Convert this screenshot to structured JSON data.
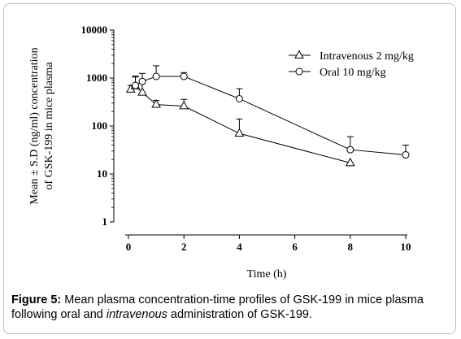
{
  "chart_data": {
    "type": "line",
    "xlabel": "Time (h)",
    "ylabel_line1": "Mean ± S.D (ng/ml) concentration",
    "ylabel_line2": "of GSK-199 in mice plasma",
    "y_scale": "log",
    "xlim": [
      0,
      10
    ],
    "ylim": [
      1,
      10000
    ],
    "x_ticks": [
      "0",
      "2",
      "4",
      "6",
      "8",
      "10"
    ],
    "y_ticks": [
      "1",
      "10",
      "100",
      "1000",
      "10000"
    ],
    "legend_position": "top-right",
    "series": [
      {
        "name": "Intravenous 2 mg/kg",
        "marker": "triangle",
        "x": [
          0.083,
          0.25,
          0.5,
          1,
          2,
          4,
          8
        ],
        "y": [
          580,
          680,
          500,
          280,
          260,
          70,
          17
        ],
        "error_upper": [
          700,
          1050,
          820,
          340,
          360,
          140,
          17
        ]
      },
      {
        "name": "Oral 10 mg/kg",
        "marker": "circle",
        "x": [
          0.25,
          0.5,
          1,
          2,
          4,
          8,
          10
        ],
        "y": [
          700,
          850,
          1080,
          1080,
          370,
          32,
          25
        ],
        "error_upper": [
          1100,
          1250,
          1800,
          1300,
          600,
          60,
          40
        ]
      }
    ]
  },
  "caption": {
    "label": "Figure 5:",
    "text_before": " Mean plasma concentration-time profiles of GSK-199 in mice plasma following oral and ",
    "italic": "intravenous",
    "text_after": " administration of GSK-199."
  }
}
